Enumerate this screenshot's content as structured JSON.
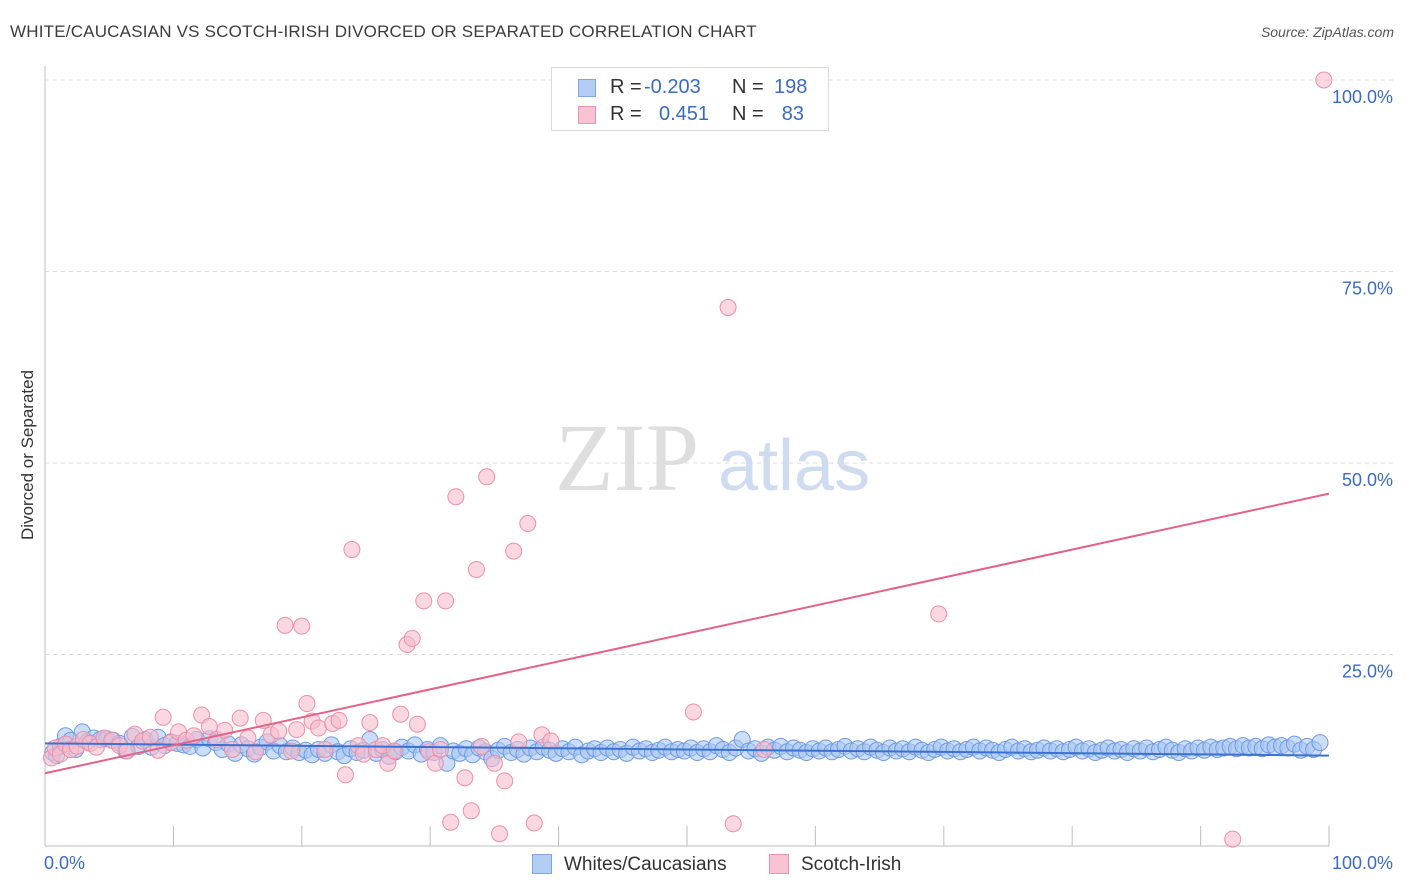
{
  "title": "WHITE/CAUCASIAN VS SCOTCH-IRISH DIVORCED OR SEPARATED CORRELATION CHART",
  "source": "Source: ZipAtlas.com",
  "watermark": {
    "zip": "ZIP",
    "atlas": "atlas"
  },
  "stats": {
    "r_label": "R =",
    "n_label": "N =",
    "rows": [
      {
        "r": "-0.203",
        "n": "198",
        "fill": "#b3cdf5",
        "stroke": "#7ea6e6"
      },
      {
        "r": "0.451",
        "n": "83",
        "fill": "#f8c4d3",
        "stroke": "#ec94ad"
      }
    ]
  },
  "legend": {
    "items": [
      {
        "label": "Whites/Caucasians",
        "fill": "#b3cdf5",
        "stroke": "#7ea6e6"
      },
      {
        "label": "Scotch-Irish",
        "fill": "#f8c4d3",
        "stroke": "#ec94ad"
      }
    ]
  },
  "chart_data": {
    "type": "scatter",
    "title": "WHITE/CAUCASIAN VS SCOTCH-IRISH DIVORCED OR SEPARATED CORRELATION CHART",
    "xlabel": "",
    "ylabel": "Divorced or Separated",
    "xlim": [
      0,
      100
    ],
    "ylim": [
      0,
      100
    ],
    "x_tick_labels": [
      "0.0%",
      "100.0%"
    ],
    "y_ticks": [
      25,
      50,
      75,
      100
    ],
    "y_tick_labels": [
      "25.0%",
      "50.0%",
      "75.0%",
      "100.0%"
    ],
    "grid": "horizontal dashed",
    "legend_position": "bottom-center",
    "colors": {
      "blue_fill": "#a9c6f2",
      "blue_stroke": "#6f9be0",
      "blue_line": "#3c72cf",
      "pink_fill": "#f6bccd",
      "pink_stroke": "#eb8fa9",
      "pink_line": "#e2628a",
      "tick_label": "#3a6bc4"
    },
    "series": [
      {
        "name": "Whites/Caucasians",
        "trend": {
          "x": [
            0,
            100
          ],
          "y": [
            13.4,
            11.8
          ]
        },
        "points": [
          [
            0.6,
            12.2
          ],
          [
            0.9,
            11.8
          ],
          [
            1.2,
            13.0
          ],
          [
            1.6,
            14.4
          ],
          [
            2.0,
            13.8
          ],
          [
            2.4,
            12.6
          ],
          [
            2.9,
            14.9
          ],
          [
            3.3,
            13.6
          ],
          [
            3.8,
            14.1
          ],
          [
            4.3,
            13.9
          ],
          [
            4.8,
            14.0
          ],
          [
            5.3,
            13.8
          ],
          [
            5.8,
            13.4
          ],
          [
            6.3,
            12.4
          ],
          [
            6.8,
            14.3
          ],
          [
            7.3,
            13.0
          ],
          [
            7.8,
            13.9
          ],
          [
            8.3,
            12.9
          ],
          [
            8.8,
            14.2
          ],
          [
            9.3,
            13.1
          ],
          [
            9.8,
            13.6
          ],
          [
            10.3,
            13.4
          ],
          [
            10.8,
            13.2
          ],
          [
            11.3,
            13.0
          ],
          [
            11.8,
            13.9
          ],
          [
            12.3,
            12.8
          ],
          [
            12.8,
            14.0
          ],
          [
            13.3,
            13.5
          ],
          [
            13.8,
            12.6
          ],
          [
            14.3,
            13.3
          ],
          [
            14.8,
            12.1
          ],
          [
            15.3,
            13.2
          ],
          [
            15.8,
            12.7
          ],
          [
            16.3,
            12.0
          ],
          [
            16.8,
            12.9
          ],
          [
            17.3,
            13.6
          ],
          [
            17.8,
            12.4
          ],
          [
            18.3,
            13.1
          ],
          [
            18.8,
            12.3
          ],
          [
            19.3,
            12.8
          ],
          [
            19.8,
            12.2
          ],
          [
            20.3,
            12.5
          ],
          [
            20.8,
            11.9
          ],
          [
            21.3,
            12.6
          ],
          [
            21.8,
            12.1
          ],
          [
            22.3,
            13.2
          ],
          [
            22.8,
            12.3
          ],
          [
            23.3,
            11.8
          ],
          [
            23.8,
            12.7
          ],
          [
            24.3,
            12.2
          ],
          [
            24.8,
            12.5
          ],
          [
            25.3,
            13.9
          ],
          [
            25.8,
            12.1
          ],
          [
            26.3,
            12.6
          ],
          [
            26.8,
            11.7
          ],
          [
            27.3,
            12.3
          ],
          [
            27.8,
            12.9
          ],
          [
            28.3,
            12.4
          ],
          [
            28.8,
            13.2
          ],
          [
            29.3,
            12.0
          ],
          [
            29.8,
            12.6
          ],
          [
            30.3,
            12.2
          ],
          [
            30.8,
            13.1
          ],
          [
            31.3,
            10.8
          ],
          [
            31.8,
            12.4
          ],
          [
            32.3,
            12.1
          ],
          [
            32.8,
            12.7
          ],
          [
            33.3,
            11.9
          ],
          [
            33.8,
            12.8
          ],
          [
            34.3,
            12.3
          ],
          [
            34.8,
            11.4
          ],
          [
            35.3,
            12.5
          ],
          [
            35.8,
            13.0
          ],
          [
            36.3,
            12.2
          ],
          [
            36.8,
            12.6
          ],
          [
            37.3,
            12.0
          ],
          [
            37.8,
            12.8
          ],
          [
            38.3,
            12.3
          ],
          [
            38.8,
            12.9
          ],
          [
            39.3,
            12.5
          ],
          [
            39.8,
            12.1
          ],
          [
            40.3,
            12.7
          ],
          [
            40.8,
            12.3
          ],
          [
            41.3,
            12.9
          ],
          [
            41.8,
            11.9
          ],
          [
            42.3,
            12.4
          ],
          [
            42.8,
            12.7
          ],
          [
            43.3,
            12.2
          ],
          [
            43.8,
            12.8
          ],
          [
            44.3,
            12.3
          ],
          [
            44.8,
            12.6
          ],
          [
            45.3,
            12.1
          ],
          [
            45.8,
            12.9
          ],
          [
            46.3,
            12.4
          ],
          [
            46.8,
            12.7
          ],
          [
            47.3,
            12.2
          ],
          [
            47.8,
            12.5
          ],
          [
            48.3,
            12.9
          ],
          [
            48.8,
            12.3
          ],
          [
            49.3,
            12.6
          ],
          [
            49.8,
            12.4
          ],
          [
            50.3,
            12.8
          ],
          [
            50.8,
            12.2
          ],
          [
            51.3,
            12.7
          ],
          [
            51.8,
            12.3
          ],
          [
            52.3,
            13.1
          ],
          [
            52.8,
            12.6
          ],
          [
            53.3,
            12.2
          ],
          [
            53.8,
            12.8
          ],
          [
            54.3,
            13.9
          ],
          [
            54.8,
            12.4
          ],
          [
            55.3,
            12.7
          ],
          [
            55.8,
            12.1
          ],
          [
            56.3,
            12.9
          ],
          [
            56.8,
            12.5
          ],
          [
            57.3,
            13.0
          ],
          [
            57.8,
            12.3
          ],
          [
            58.3,
            12.8
          ],
          [
            58.8,
            12.5
          ],
          [
            59.3,
            12.2
          ],
          [
            59.8,
            12.7
          ],
          [
            60.3,
            12.4
          ],
          [
            60.8,
            12.8
          ],
          [
            61.3,
            12.3
          ],
          [
            61.8,
            12.6
          ],
          [
            62.3,
            13.0
          ],
          [
            62.8,
            12.4
          ],
          [
            63.3,
            12.7
          ],
          [
            63.8,
            12.3
          ],
          [
            64.3,
            12.9
          ],
          [
            64.8,
            12.5
          ],
          [
            65.3,
            12.2
          ],
          [
            65.8,
            12.8
          ],
          [
            66.3,
            12.4
          ],
          [
            66.8,
            12.7
          ],
          [
            67.3,
            12.3
          ],
          [
            67.8,
            12.9
          ],
          [
            68.3,
            12.5
          ],
          [
            68.8,
            12.2
          ],
          [
            69.3,
            12.6
          ],
          [
            69.8,
            12.9
          ],
          [
            70.3,
            12.4
          ],
          [
            70.8,
            12.7
          ],
          [
            71.3,
            12.3
          ],
          [
            71.8,
            12.6
          ],
          [
            72.3,
            12.9
          ],
          [
            72.8,
            12.4
          ],
          [
            73.3,
            12.8
          ],
          [
            73.8,
            12.5
          ],
          [
            74.3,
            12.2
          ],
          [
            74.8,
            12.6
          ],
          [
            75.3,
            12.9
          ],
          [
            75.8,
            12.4
          ],
          [
            76.3,
            12.7
          ],
          [
            76.8,
            12.3
          ],
          [
            77.3,
            12.5
          ],
          [
            77.8,
            12.8
          ],
          [
            78.3,
            12.4
          ],
          [
            78.8,
            12.7
          ],
          [
            79.3,
            12.3
          ],
          [
            79.8,
            12.6
          ],
          [
            80.3,
            12.9
          ],
          [
            80.8,
            12.4
          ],
          [
            81.3,
            12.7
          ],
          [
            81.8,
            12.2
          ],
          [
            82.3,
            12.5
          ],
          [
            82.8,
            12.8
          ],
          [
            83.3,
            12.4
          ],
          [
            83.8,
            12.6
          ],
          [
            84.3,
            12.2
          ],
          [
            84.8,
            12.7
          ],
          [
            85.3,
            12.4
          ],
          [
            85.8,
            12.8
          ],
          [
            86.3,
            12.3
          ],
          [
            86.8,
            12.6
          ],
          [
            87.3,
            12.9
          ],
          [
            87.8,
            12.5
          ],
          [
            88.3,
            12.2
          ],
          [
            88.8,
            12.7
          ],
          [
            89.3,
            12.4
          ],
          [
            89.8,
            12.8
          ],
          [
            90.3,
            12.5
          ],
          [
            90.8,
            12.9
          ],
          [
            91.3,
            12.6
          ],
          [
            91.8,
            12.8
          ],
          [
            92.3,
            13.0
          ],
          [
            92.8,
            12.7
          ],
          [
            93.3,
            13.1
          ],
          [
            93.8,
            12.8
          ],
          [
            94.3,
            13.0
          ],
          [
            94.8,
            12.7
          ],
          [
            95.3,
            13.2
          ],
          [
            95.8,
            12.9
          ],
          [
            96.3,
            13.1
          ],
          [
            96.8,
            12.8
          ],
          [
            97.3,
            13.3
          ],
          [
            97.8,
            12.5
          ],
          [
            98.3,
            13.0
          ],
          [
            98.8,
            12.6
          ],
          [
            99.3,
            13.5
          ]
        ]
      },
      {
        "name": "Scotch-Irish",
        "trend": {
          "x": [
            0,
            100
          ],
          "y": [
            9.5,
            46.0
          ]
        },
        "points": [
          [
            0.5,
            11.5
          ],
          [
            0.8,
            12.8
          ],
          [
            1.2,
            12.0
          ],
          [
            1.6,
            13.3
          ],
          [
            2.0,
            12.6
          ],
          [
            2.5,
            13.0
          ],
          [
            3.0,
            13.9
          ],
          [
            3.5,
            13.4
          ],
          [
            4.0,
            12.9
          ],
          [
            4.6,
            14.1
          ],
          [
            5.2,
            13.8
          ],
          [
            5.8,
            13.1
          ],
          [
            6.4,
            12.4
          ],
          [
            7.0,
            14.6
          ],
          [
            7.6,
            13.7
          ],
          [
            8.2,
            14.2
          ],
          [
            8.8,
            12.5
          ],
          [
            9.2,
            16.8
          ],
          [
            9.8,
            13.5
          ],
          [
            10.4,
            14.9
          ],
          [
            11.0,
            13.8
          ],
          [
            11.6,
            14.4
          ],
          [
            12.2,
            17.1
          ],
          [
            12.8,
            15.6
          ],
          [
            13.4,
            13.9
          ],
          [
            14.0,
            15.1
          ],
          [
            14.6,
            12.6
          ],
          [
            15.2,
            16.7
          ],
          [
            15.8,
            14.1
          ],
          [
            16.4,
            12.3
          ],
          [
            17.0,
            16.4
          ],
          [
            17.6,
            14.5
          ],
          [
            18.2,
            15.0
          ],
          [
            18.7,
            28.8
          ],
          [
            19.2,
            12.4
          ],
          [
            19.6,
            15.2
          ],
          [
            20.0,
            28.7
          ],
          [
            20.4,
            18.6
          ],
          [
            20.8,
            16.3
          ],
          [
            21.3,
            15.4
          ],
          [
            21.8,
            12.6
          ],
          [
            22.4,
            16.0
          ],
          [
            22.9,
            16.4
          ],
          [
            23.4,
            9.3
          ],
          [
            23.9,
            38.7
          ],
          [
            24.4,
            13.1
          ],
          [
            24.8,
            12.0
          ],
          [
            25.3,
            16.1
          ],
          [
            25.8,
            12.6
          ],
          [
            26.3,
            13.1
          ],
          [
            26.7,
            10.8
          ],
          [
            27.2,
            12.4
          ],
          [
            27.7,
            17.2
          ],
          [
            28.2,
            26.3
          ],
          [
            28.6,
            27.1
          ],
          [
            29.0,
            15.9
          ],
          [
            29.5,
            32.0
          ],
          [
            29.9,
            12.3
          ],
          [
            30.4,
            10.8
          ],
          [
            30.8,
            12.6
          ],
          [
            31.2,
            32.0
          ],
          [
            31.6,
            3.1
          ],
          [
            32.0,
            45.6
          ],
          [
            32.7,
            8.9
          ],
          [
            33.2,
            4.6
          ],
          [
            33.6,
            36.1
          ],
          [
            34.0,
            13.0
          ],
          [
            34.4,
            48.2
          ],
          [
            35.0,
            10.8
          ],
          [
            35.4,
            1.6
          ],
          [
            35.8,
            8.5
          ],
          [
            36.5,
            38.5
          ],
          [
            36.9,
            13.6
          ],
          [
            37.6,
            42.1
          ],
          [
            38.1,
            3.0
          ],
          [
            38.7,
            14.5
          ],
          [
            39.4,
            13.7
          ],
          [
            50.5,
            17.5
          ],
          [
            53.2,
            70.3
          ],
          [
            53.6,
            2.9
          ],
          [
            56.0,
            12.6
          ],
          [
            69.6,
            30.3
          ],
          [
            92.5,
            0.9
          ],
          [
            99.6,
            100.0
          ]
        ]
      }
    ]
  }
}
